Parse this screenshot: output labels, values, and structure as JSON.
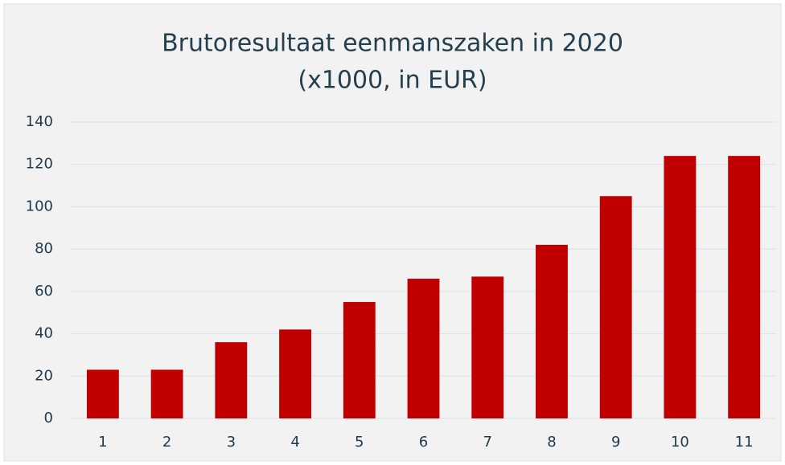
{
  "chart_data": {
    "type": "bar",
    "title": "Brutoresultaat eenmanszaken in 2020",
    "subtitle": "(x1000, in EUR)",
    "categories": [
      "1",
      "2",
      "3",
      "4",
      "5",
      "6",
      "7",
      "8",
      "9",
      "10",
      "11"
    ],
    "values": [
      23,
      23,
      36,
      42,
      55,
      66,
      67,
      82,
      105,
      124,
      124
    ],
    "color": "#c00000",
    "ylim": [
      0,
      140
    ],
    "yticks": [
      0,
      20,
      40,
      60,
      80,
      100,
      120,
      140
    ],
    "grid": true
  }
}
